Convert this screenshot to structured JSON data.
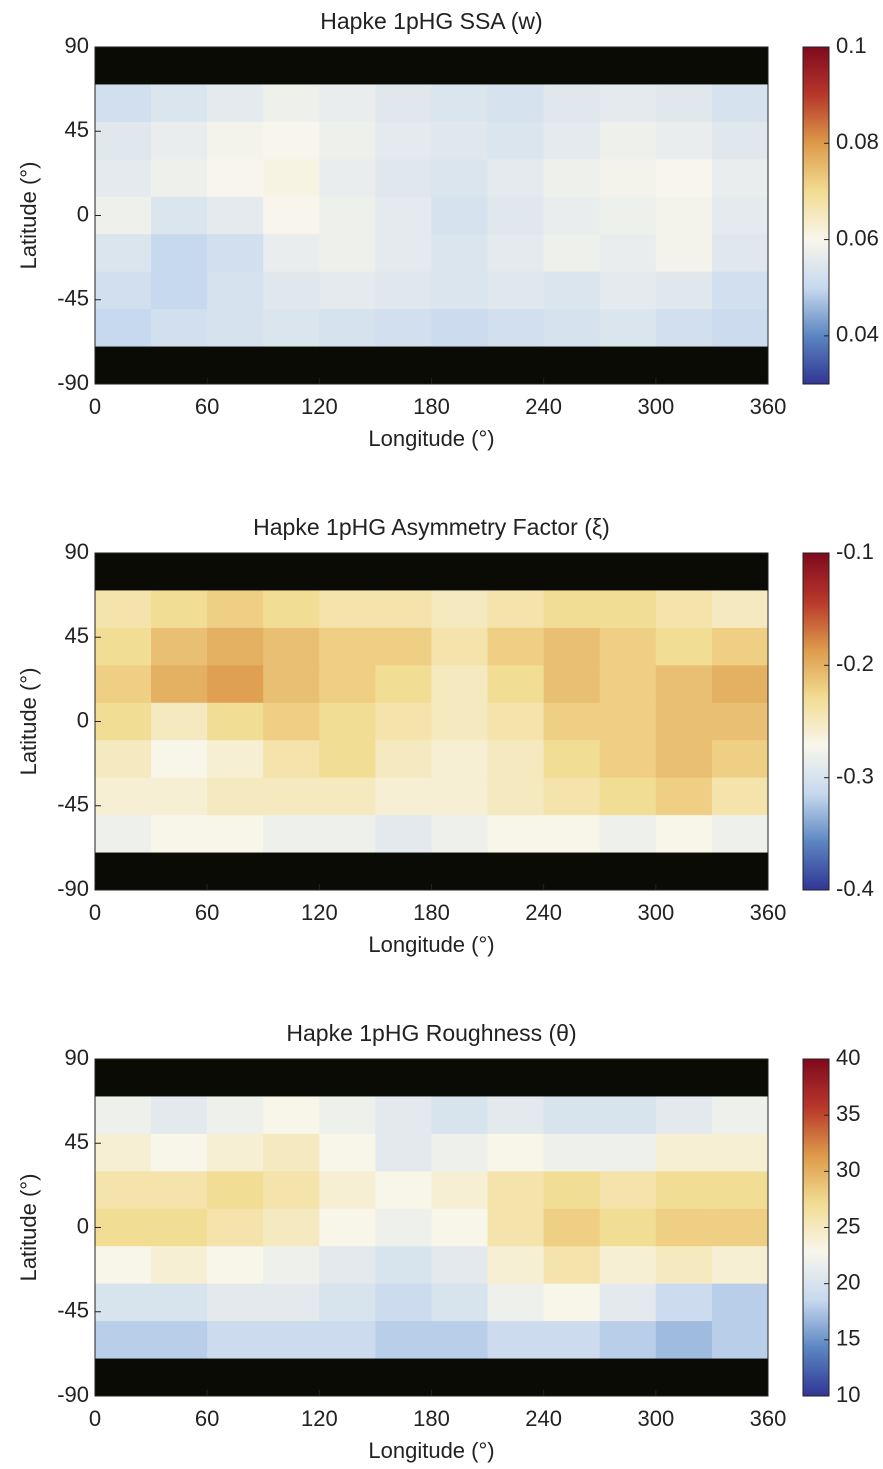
{
  "chart_data": [
    {
      "type": "heatmap",
      "title": "Hapke 1pHG SSA (w)",
      "xlabel": "Longitude (°)",
      "ylabel": "Latitude (°)",
      "xlim": [
        0,
        360
      ],
      "xticks": [
        0,
        60,
        120,
        180,
        240,
        300,
        360
      ],
      "ylim": [
        -90,
        90
      ],
      "yticks": [
        -90,
        -45,
        0,
        45,
        90
      ],
      "x_edges": [
        0,
        30,
        60,
        90,
        120,
        150,
        180,
        210,
        240,
        270,
        300,
        330,
        360
      ],
      "y_edges": [
        90,
        70,
        50,
        30,
        10,
        -10,
        -30,
        -50,
        -70,
        -90
      ],
      "clim": [
        0.03,
        0.1
      ],
      "cticks": [
        0.04,
        0.06,
        0.08,
        0.1
      ],
      "colormap": [
        "#313695",
        "#5b86c1",
        "#c7d9ee",
        "#f8f6ec",
        "#f2dc92",
        "#dd9a4a",
        "#b8372a",
        "#7f0a1e"
      ],
      "nan_color": "#0b0b06",
      "values": [
        [
          null,
          null,
          null,
          null,
          null,
          null,
          null,
          null,
          null,
          null,
          null,
          null
        ],
        [
          0.052,
          0.054,
          0.056,
          0.058,
          0.057,
          0.055,
          0.054,
          0.053,
          0.055,
          0.056,
          0.055,
          0.053
        ],
        [
          0.055,
          0.057,
          0.059,
          0.06,
          0.058,
          0.056,
          0.055,
          0.054,
          0.056,
          0.058,
          0.057,
          0.055
        ],
        [
          0.056,
          0.058,
          0.06,
          0.061,
          0.057,
          0.055,
          0.054,
          0.056,
          0.058,
          0.059,
          0.06,
          0.057
        ],
        [
          0.058,
          0.054,
          0.056,
          0.06,
          0.058,
          0.056,
          0.053,
          0.055,
          0.057,
          0.058,
          0.059,
          0.056
        ],
        [
          0.054,
          0.05,
          0.052,
          0.057,
          0.058,
          0.056,
          0.054,
          0.056,
          0.058,
          0.057,
          0.059,
          0.055
        ],
        [
          0.052,
          0.05,
          0.053,
          0.055,
          0.056,
          0.055,
          0.054,
          0.055,
          0.054,
          0.056,
          0.055,
          0.052
        ],
        [
          0.05,
          0.052,
          0.053,
          0.054,
          0.053,
          0.052,
          0.051,
          0.052,
          0.053,
          0.054,
          0.052,
          0.051
        ],
        [
          null,
          null,
          null,
          null,
          null,
          null,
          null,
          null,
          null,
          null,
          null,
          null
        ]
      ]
    },
    {
      "type": "heatmap",
      "title": "Hapke 1pHG Asymmetry Factor (ξ)",
      "xlabel": "Longitude (°)",
      "ylabel": "Latitude (°)",
      "xlim": [
        0,
        360
      ],
      "xticks": [
        0,
        60,
        120,
        180,
        240,
        300,
        360
      ],
      "ylim": [
        -90,
        90
      ],
      "yticks": [
        -90,
        -45,
        0,
        45,
        90
      ],
      "x_edges": [
        0,
        30,
        60,
        90,
        120,
        150,
        180,
        210,
        240,
        270,
        300,
        330,
        360
      ],
      "y_edges": [
        90,
        70,
        50,
        30,
        10,
        -10,
        -30,
        -50,
        -70,
        -90
      ],
      "clim": [
        -0.4,
        -0.1
      ],
      "cticks": [
        -0.4,
        -0.3,
        -0.2,
        -0.1
      ],
      "colormap": [
        "#313695",
        "#5b86c1",
        "#c7d9ee",
        "#f8f6ec",
        "#f2dc92",
        "#dd9a4a",
        "#b8372a",
        "#7f0a1e"
      ],
      "nan_color": "#0b0b06",
      "values": [
        [
          null,
          null,
          null,
          null,
          null,
          null,
          null,
          null,
          null,
          null,
          null,
          null
        ],
        [
          -0.24,
          -0.23,
          -0.22,
          -0.23,
          -0.24,
          -0.24,
          -0.25,
          -0.24,
          -0.23,
          -0.23,
          -0.24,
          -0.25
        ],
        [
          -0.23,
          -0.21,
          -0.2,
          -0.21,
          -0.22,
          -0.22,
          -0.24,
          -0.22,
          -0.21,
          -0.22,
          -0.23,
          -0.22
        ],
        [
          -0.22,
          -0.2,
          -0.19,
          -0.21,
          -0.22,
          -0.23,
          -0.25,
          -0.23,
          -0.21,
          -0.22,
          -0.21,
          -0.2
        ],
        [
          -0.23,
          -0.25,
          -0.23,
          -0.22,
          -0.23,
          -0.24,
          -0.25,
          -0.24,
          -0.22,
          -0.22,
          -0.21,
          -0.21
        ],
        [
          -0.25,
          -0.27,
          -0.26,
          -0.24,
          -0.23,
          -0.25,
          -0.26,
          -0.25,
          -0.23,
          -0.22,
          -0.21,
          -0.22
        ],
        [
          -0.26,
          -0.26,
          -0.25,
          -0.25,
          -0.25,
          -0.26,
          -0.26,
          -0.25,
          -0.24,
          -0.23,
          -0.22,
          -0.24
        ],
        [
          -0.28,
          -0.27,
          -0.27,
          -0.28,
          -0.28,
          -0.29,
          -0.28,
          -0.27,
          -0.27,
          -0.28,
          -0.27,
          -0.28
        ],
        [
          null,
          null,
          null,
          null,
          null,
          null,
          null,
          null,
          null,
          null,
          null,
          null
        ]
      ]
    },
    {
      "type": "heatmap",
      "title": "Hapke 1pHG Roughness (θ)",
      "xlabel": "Longitude (°)",
      "ylabel": "Latitude (°)",
      "xlim": [
        0,
        360
      ],
      "xticks": [
        0,
        60,
        120,
        180,
        240,
        300,
        360
      ],
      "ylim": [
        -90,
        90
      ],
      "yticks": [
        -90,
        -45,
        0,
        45,
        90
      ],
      "x_edges": [
        0,
        30,
        60,
        90,
        120,
        150,
        180,
        210,
        240,
        270,
        300,
        330,
        360
      ],
      "y_edges": [
        90,
        70,
        50,
        30,
        10,
        -10,
        -30,
        -50,
        -70,
        -90
      ],
      "clim": [
        10,
        40
      ],
      "cticks": [
        10,
        15,
        20,
        25,
        30,
        35,
        40
      ],
      "colormap": [
        "#313695",
        "#5b86c1",
        "#c7d9ee",
        "#f8f6ec",
        "#f2dc92",
        "#dd9a4a",
        "#b8372a",
        "#7f0a1e"
      ],
      "nan_color": "#0b0b06",
      "values": [
        [
          null,
          null,
          null,
          null,
          null,
          null,
          null,
          null,
          null,
          null,
          null,
          null
        ],
        [
          22,
          21,
          22,
          23,
          22,
          21,
          20,
          21,
          20,
          20,
          21,
          22
        ],
        [
          24,
          23,
          24,
          25,
          23,
          21,
          22,
          23,
          22,
          22,
          24,
          24
        ],
        [
          26,
          26,
          27,
          26,
          24,
          23,
          24,
          26,
          27,
          26,
          27,
          27
        ],
        [
          27,
          27,
          26,
          25,
          23,
          22,
          23,
          26,
          28,
          27,
          28,
          28
        ],
        [
          23,
          24,
          23,
          22,
          21,
          20,
          21,
          24,
          26,
          24,
          25,
          24
        ],
        [
          20,
          20,
          21,
          21,
          20,
          19,
          20,
          22,
          23,
          21,
          19,
          18
        ],
        [
          18,
          18,
          19,
          19,
          19,
          18,
          18,
          19,
          19,
          18,
          17,
          18
        ],
        [
          null,
          null,
          null,
          null,
          null,
          null,
          null,
          null,
          null,
          null,
          null,
          null
        ]
      ]
    }
  ]
}
